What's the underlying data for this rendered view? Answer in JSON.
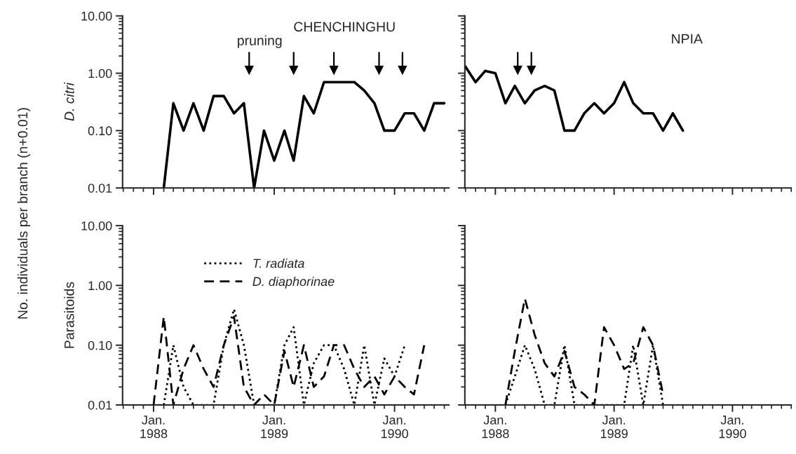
{
  "chart_data": [
    {
      "type": "line",
      "ylabel": "D. citri",
      "log": true,
      "grid": false,
      "legend": false,
      "tick_labels": "y",
      "marker": "none",
      "xlim": [
        "1987-09-29",
        "1990-06-15"
      ],
      "ylim": [
        0.01,
        10
      ],
      "xticks": [
        {
          "value": "1988-01",
          "label": null
        },
        {
          "value": "1989-01",
          "label": null
        },
        {
          "value": "1990-01",
          "label": null
        }
      ],
      "yticks": [
        {
          "value": 0.01,
          "label": "0.01"
        },
        {
          "value": 0.1,
          "label": "0.10"
        },
        {
          "value": 1,
          "label": "1.00"
        },
        {
          "value": 10,
          "label": "10.00"
        }
      ],
      "annotations": [
        "pruning",
        "CHENCHINGHU",
        "No. individuals per branch (n+0.01)"
      ],
      "ref_lines": [
        {
          "axis": "x",
          "value": "1988-10-17"
        },
        {
          "axis": "x",
          "value": "1989-03-01"
        },
        {
          "axis": "x",
          "value": "1989-07-01"
        },
        {
          "axis": "x",
          "value": "1989-11-15"
        },
        {
          "axis": "x",
          "value": "1990-01-25"
        }
      ],
      "series": [
        {
          "color": "#000000",
          "line_style": "solid",
          "x": [
            "1988-02",
            "1988-03",
            "1988-04",
            "1988-05",
            "1988-06",
            "1988-07",
            "1988-08",
            "1988-09",
            "1988-10",
            "1988-11",
            "1988-12",
            "1989-01",
            "1989-02",
            "1989-03",
            "1989-04",
            "1989-05",
            "1989-06",
            "1989-07",
            "1989-08",
            "1989-09",
            "1989-10",
            "1989-11",
            "1989-12",
            "1990-01",
            "1990-02",
            "1990-03",
            "1990-04",
            "1990-05",
            "1990-06"
          ],
          "values": [
            0.01,
            0.3,
            0.1,
            0.3,
            0.1,
            0.4,
            0.4,
            0.2,
            0.3,
            0.01,
            0.1,
            0.03,
            0.1,
            0.03,
            0.4,
            0.2,
            0.7,
            0.7,
            0.7,
            0.7,
            0.5,
            0.3,
            0.1,
            0.1,
            0.2,
            0.2,
            0.1,
            0.3,
            0.3
          ]
        }
      ]
    },
    {
      "type": "line",
      "log": true,
      "grid": false,
      "legend": false,
      "tick_labels": false,
      "marker": "none",
      "xlim": [
        "1987-09-29",
        "1990-07-01"
      ],
      "ylim": [
        0.01,
        10
      ],
      "xticks": [
        {
          "value": "1988-01",
          "label": null
        },
        {
          "value": "1989-01",
          "label": null
        },
        {
          "value": "1990-01",
          "label": null
        }
      ],
      "yticks": [
        {
          "value": 0.01,
          "label": null
        },
        {
          "value": 0.1,
          "label": null
        },
        {
          "value": 1,
          "label": null
        },
        {
          "value": 10,
          "label": null
        }
      ],
      "annotations": [
        "NPIA"
      ],
      "ref_lines": [
        {
          "axis": "x",
          "value": "1988-03-10"
        },
        {
          "axis": "x",
          "value": "1988-04-21"
        }
      ],
      "series": [
        {
          "color": "#000000",
          "line_style": "solid",
          "x": [
            "1987-10",
            "1987-11",
            "1987-12",
            "1988-01",
            "1988-02",
            "1988-03",
            "1988-04",
            "1988-05",
            "1988-06",
            "1988-07",
            "1988-08",
            "1988-09",
            "1988-10",
            "1988-11",
            "1988-12",
            "1989-01",
            "1989-02",
            "1989-03",
            "1989-04",
            "1989-05",
            "1989-06",
            "1989-07",
            "1989-08"
          ],
          "values": [
            1.3,
            0.7,
            1.1,
            1.0,
            0.3,
            0.6,
            0.3,
            0.5,
            0.6,
            0.5,
            0.1,
            0.1,
            0.2,
            0.3,
            0.2,
            0.3,
            0.7,
            0.3,
            0.2,
            0.2,
            0.1,
            0.2,
            0.1
          ]
        }
      ]
    },
    {
      "type": "line",
      "ylabel": "Parasitoids",
      "log": true,
      "grid": false,
      "legend": "top",
      "marker": "none",
      "xlim": [
        "1987-09-29",
        "1990-06-15"
      ],
      "ylim": [
        0.01,
        10
      ],
      "xticks": [
        {
          "value": "1988-01",
          "label": "Jan.\n1988"
        },
        {
          "value": "1989-01",
          "label": "Jan.\n1989"
        },
        {
          "value": "1990-01",
          "label": "Jan.\n1990"
        }
      ],
      "yticks": [
        {
          "value": 0.01,
          "label": "0.01"
        },
        {
          "value": 0.1,
          "label": "0.10"
        },
        {
          "value": 1,
          "label": "1.00"
        },
        {
          "value": 10,
          "label": "10.00"
        }
      ],
      "series": [
        {
          "name": "T. radiata",
          "color": "#000000",
          "line_style": "dotted",
          "x": [
            "1988-01",
            "1988-02",
            "1988-03",
            "1988-04",
            "1988-05",
            "1988-06",
            "1988-07",
            "1988-08",
            "1988-09",
            "1988-10",
            "1988-11",
            "1988-12",
            "1989-01",
            "1989-02",
            "1989-03",
            "1989-04",
            "1989-05",
            "1989-06",
            "1989-07",
            "1989-08",
            "1989-09",
            "1989-10",
            "1989-11",
            "1989-12",
            "1990-01",
            "1990-02"
          ],
          "values": [
            0.01,
            0.01,
            0.1,
            0.02,
            0.01,
            0.01,
            0.01,
            0.1,
            0.4,
            0.1,
            0.01,
            0.01,
            0.01,
            0.1,
            0.2,
            0.01,
            0.05,
            0.1,
            0.1,
            0.04,
            0.01,
            0.1,
            0.01,
            0.06,
            0.03,
            0.1
          ]
        },
        {
          "name": "D. diaphorinae",
          "color": "#000000",
          "line_style": "dashed",
          "x": [
            "1988-01",
            "1988-02",
            "1988-03",
            "1988-04",
            "1988-05",
            "1988-06",
            "1988-07",
            "1988-08",
            "1988-09",
            "1988-10",
            "1988-11",
            "1988-12",
            "1989-01",
            "1989-02",
            "1989-03",
            "1989-04",
            "1989-05",
            "1989-06",
            "1989-07",
            "1989-08",
            "1989-09",
            "1989-10",
            "1989-11",
            "1989-12",
            "1990-01",
            "1990-02",
            "1990-03",
            "1990-04"
          ],
          "values": [
            0.01,
            0.3,
            0.01,
            0.04,
            0.1,
            0.04,
            0.02,
            0.1,
            0.3,
            0.02,
            0.01,
            0.015,
            0.01,
            0.08,
            0.02,
            0.1,
            0.02,
            0.03,
            0.1,
            0.1,
            0.04,
            0.02,
            0.03,
            0.015,
            0.03,
            0.02,
            0.015,
            0.1
          ]
        }
      ]
    },
    {
      "type": "line",
      "log": true,
      "grid": false,
      "legend": false,
      "tick_labels": "x",
      "marker": "none",
      "xlim": [
        "1987-09-29",
        "1990-07-01"
      ],
      "ylim": [
        0.01,
        10
      ],
      "xticks": [
        {
          "value": "1988-01",
          "label": "Jan.\n1988"
        },
        {
          "value": "1989-01",
          "label": "Jan.\n1989"
        },
        {
          "value": "1990-01",
          "label": "Jan.\n1990"
        }
      ],
      "yticks": [
        {
          "value": 0.01,
          "label": null
        },
        {
          "value": 0.1,
          "label": null
        },
        {
          "value": 1,
          "label": null
        },
        {
          "value": 10,
          "label": null
        }
      ],
      "series": [
        {
          "color": "#000000",
          "line_style": "dotted",
          "x": [
            "1988-02",
            "1988-03",
            "1988-04",
            "1988-05",
            "1988-06",
            "1988-07",
            "1988-08",
            "1988-09",
            "1988-10",
            "1988-11",
            "1988-12",
            "1989-01",
            "1989-02",
            "1989-03",
            "1989-04",
            "1989-05",
            "1989-06"
          ],
          "values": [
            0.01,
            0.03,
            0.1,
            0.04,
            0.01,
            0.01,
            0.1,
            0.01,
            0.01,
            0.01,
            0.01,
            0.01,
            0.01,
            0.1,
            0.01,
            0.1,
            0.01
          ]
        },
        {
          "color": "#000000",
          "line_style": "dashed",
          "x": [
            "1988-02",
            "1988-03",
            "1988-04",
            "1988-05",
            "1988-06",
            "1988-07",
            "1988-08",
            "1988-09",
            "1988-10",
            "1988-11",
            "1988-12",
            "1989-01",
            "1989-02",
            "1989-03",
            "1989-04",
            "1989-05",
            "1989-06"
          ],
          "values": [
            0.01,
            0.08,
            0.6,
            0.15,
            0.05,
            0.03,
            0.08,
            0.02,
            0.015,
            0.01,
            0.2,
            0.1,
            0.04,
            0.05,
            0.2,
            0.1,
            0.015
          ]
        }
      ]
    }
  ]
}
